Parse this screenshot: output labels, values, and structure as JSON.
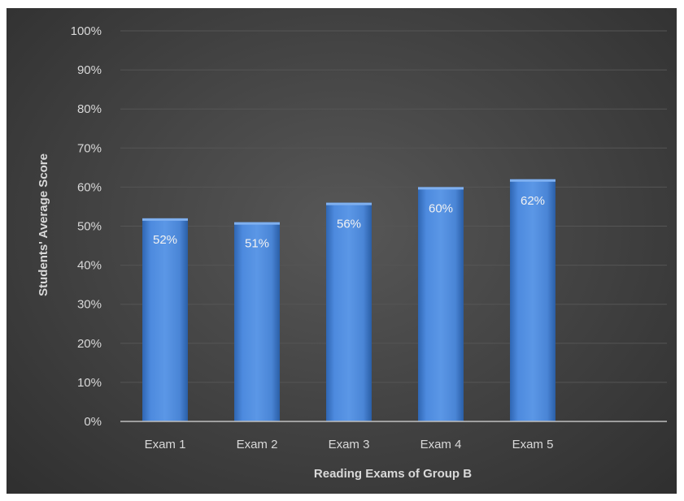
{
  "chart_data": {
    "type": "bar",
    "categories": [
      "Exam 1",
      "Exam 2",
      "Exam 3",
      "Exam 4",
      "Exam 5"
    ],
    "values": [
      52,
      51,
      56,
      60,
      62
    ],
    "data_labels": [
      "52%",
      "51%",
      "56%",
      "60%",
      "62%"
    ],
    "xlabel": "Reading Exams of Group B",
    "ylabel": "Students' Average Score",
    "ylim": [
      0,
      100
    ],
    "yticks": [
      0,
      10,
      20,
      30,
      40,
      50,
      60,
      70,
      80,
      90,
      100
    ],
    "ytick_labels": [
      "0%",
      "10%",
      "20%",
      "30%",
      "40%",
      "50%",
      "60%",
      "70%",
      "80%",
      "90%",
      "100%"
    ],
    "grid": true,
    "legend": "none",
    "colors": {
      "bar": "#4a86d8",
      "background": "#404040",
      "text": "#d9d9d9"
    }
  }
}
